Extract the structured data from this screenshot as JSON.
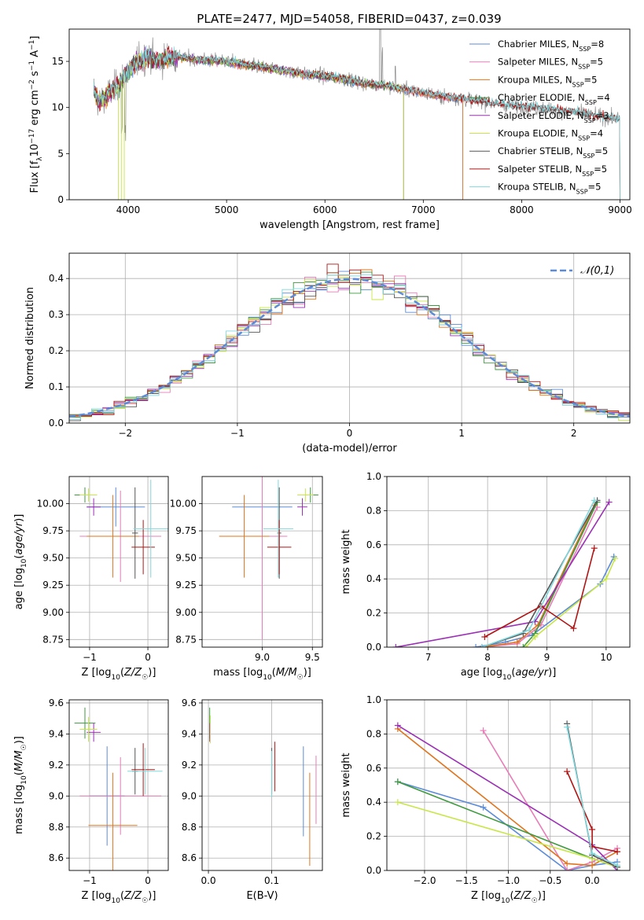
{
  "figure": {
    "title": "PLATE=2477, MJD=54058, FIBERID=0437, z=0.039"
  },
  "palette": {
    "Chabrier MILES": "#5b8bd9",
    "Salpeter MILES": "#e87cb8",
    "Kroupa MILES": "#e0751f",
    "Chabrier ELODIE": "#3f9a3f",
    "Salpeter ELODIE": "#9b2fb5",
    "Kroupa ELODIE": "#c8e64a",
    "Chabrier STELIB": "#555555",
    "Salpeter STELIB": "#b01515",
    "Kroupa STELIB": "#7fd8dc"
  },
  "chart_data": [
    {
      "id": "spectrum",
      "type": "line",
      "title": "PLATE=2477, MJD=54058, FIBERID=0437, z=0.039",
      "xlabel": "wavelength [Angstrom, rest frame]",
      "ylabel": "Flux [f_λ 10^-17 erg cm^-2 s^-1 A^-1]",
      "xlim": [
        3400,
        9100
      ],
      "ylim": [
        0,
        18.5
      ],
      "xticks": [
        4000,
        5000,
        6000,
        7000,
        8000,
        9000
      ],
      "yticks": [
        0,
        5,
        10,
        15
      ],
      "grid": false,
      "legend_position": "top-right",
      "legend": [
        {
          "name": "Chabrier MILES",
          "nssp": "8"
        },
        {
          "name": "Salpeter MILES",
          "nssp": "5"
        },
        {
          "name": "Kroupa MILES",
          "nssp": "5"
        },
        {
          "name": "Chabrier ELODIE",
          "nssp": "4"
        },
        {
          "name": "Salpeter ELODIE",
          "nssp": "3"
        },
        {
          "name": "Kroupa ELODIE",
          "nssp": "4"
        },
        {
          "name": "Chabrier STELIB",
          "nssp": "5"
        },
        {
          "name": "Salpeter STELIB",
          "nssp": "5"
        },
        {
          "name": "Kroupa STELIB",
          "nssp": "5"
        }
      ],
      "continuum": [
        [
          3650,
          12.0
        ],
        [
          3700,
          10.5
        ],
        [
          3800,
          11.5
        ],
        [
          3900,
          12.5
        ],
        [
          4000,
          14.0
        ],
        [
          4100,
          15.0
        ],
        [
          4200,
          15.5
        ],
        [
          4300,
          15.0
        ],
        [
          4400,
          15.3
        ],
        [
          4500,
          15.5
        ],
        [
          4700,
          15.2
        ],
        [
          5000,
          15.0
        ],
        [
          5200,
          14.6
        ],
        [
          5400,
          14.3
        ],
        [
          5600,
          14.0
        ],
        [
          5800,
          13.6
        ],
        [
          6000,
          13.4
        ],
        [
          6200,
          13.1
        ],
        [
          6400,
          12.6
        ],
        [
          6600,
          12.4
        ],
        [
          6800,
          12.0
        ],
        [
          7000,
          11.6
        ],
        [
          7200,
          11.2
        ],
        [
          7500,
          10.8
        ],
        [
          7800,
          10.3
        ],
        [
          8000,
          10.1
        ],
        [
          8200,
          9.9
        ],
        [
          8500,
          9.5
        ],
        [
          8800,
          9.0
        ],
        [
          9000,
          8.7
        ]
      ],
      "model_edges": {
        "MILES_max": 7400,
        "STELIB_max": 9000,
        "ELODIE_max": 6800,
        "min": 3650
      }
    },
    {
      "id": "residuals",
      "type": "line",
      "xlabel": "(data-model)/error",
      "ylabel": "Normed distribution",
      "xlim": [
        -2.5,
        2.5
      ],
      "ylim": [
        0,
        0.47
      ],
      "xticks": [
        -2,
        -1,
        0,
        1,
        2
      ],
      "yticks": [
        0.0,
        0.1,
        0.2,
        0.3,
        0.4
      ],
      "grid": true,
      "legend_position": "top-right",
      "reference_label": "𝒩(0,1)",
      "reference_color": "#5b8bd9",
      "bin_width": 0.1
    },
    {
      "id": "age_vs_Z",
      "type": "scatter",
      "xlabel": "Z [log10(Z/Z☉)]",
      "ylabel": "age [log10(age/yr)]",
      "xlim": [
        -1.35,
        0.35
      ],
      "ylim": [
        8.68,
        10.25
      ],
      "xticks": [
        -1,
        0
      ],
      "yticks": [
        8.75,
        9.0,
        9.25,
        9.5,
        9.75,
        10.0
      ],
      "grid": true,
      "points": [
        {
          "s": "Chabrier MILES",
          "x": -0.55,
          "y": 9.97,
          "xerr": 0.5,
          "yerr": 0.18
        },
        {
          "s": "Salpeter MILES",
          "x": -0.47,
          "y": 9.7,
          "xerr": 0.7,
          "yerr": 0.42
        },
        {
          "s": "Kroupa MILES",
          "x": -0.6,
          "y": 9.7,
          "xerr": 0.45,
          "yerr": 0.38
        },
        {
          "s": "Chabrier ELODIE",
          "x": -1.08,
          "y": 10.08,
          "xerr": 0.18,
          "yerr": 0.07
        },
        {
          "s": "Salpeter ELODIE",
          "x": -0.93,
          "y": 9.97,
          "xerr": 0.12,
          "yerr": 0.08
        },
        {
          "s": "Kroupa ELODIE",
          "x": -1.02,
          "y": 10.08,
          "xerr": 0.15,
          "yerr": 0.06
        },
        {
          "s": "Chabrier STELIB",
          "x": -0.22,
          "y": 9.73,
          "xerr": 0.05,
          "yerr": 0.42
        },
        {
          "s": "Salpeter STELIB",
          "x": -0.08,
          "y": 9.6,
          "xerr": 0.2,
          "yerr": 0.25
        },
        {
          "s": "Kroupa STELIB",
          "x": 0.05,
          "y": 9.77,
          "xerr": 0.3,
          "yerr": 0.45
        }
      ]
    },
    {
      "id": "age_vs_mass",
      "type": "scatter",
      "xlabel": "mass [log10(M/M☉)]",
      "ylabel": "",
      "xlim": [
        8.4,
        9.6
      ],
      "ylim": [
        8.68,
        10.25
      ],
      "xticks": [
        9.0,
        9.5
      ],
      "yticks": [
        8.75,
        9.0,
        9.25,
        9.5,
        9.75,
        10.0
      ],
      "grid": true,
      "points": [
        {
          "s": "Chabrier MILES",
          "x": 9.0,
          "y": 9.97,
          "xerr": 0.3,
          "yerr": 0.18
        },
        {
          "s": "Salpeter MILES",
          "x": 9.0,
          "y": 9.7,
          "xerr": 0.25,
          "yerr": 0.95
        },
        {
          "s": "Kroupa MILES",
          "x": 8.82,
          "y": 9.7,
          "xerr": 0.25,
          "yerr": 0.38
        },
        {
          "s": "Chabrier ELODIE",
          "x": 9.48,
          "y": 10.08,
          "xerr": 0.08,
          "yerr": 0.07
        },
        {
          "s": "Salpeter ELODIE",
          "x": 9.4,
          "y": 9.97,
          "xerr": 0.05,
          "yerr": 0.08
        },
        {
          "s": "Kroupa ELODIE",
          "x": 9.43,
          "y": 10.08,
          "xerr": 0.08,
          "yerr": 0.06
        },
        {
          "s": "Chabrier STELIB",
          "x": 9.17,
          "y": 9.73,
          "xerr": 0.02,
          "yerr": 0.42
        },
        {
          "s": "Salpeter STELIB",
          "x": 9.17,
          "y": 9.6,
          "xerr": 0.12,
          "yerr": 0.25
        },
        {
          "s": "Kroupa STELIB",
          "x": 9.16,
          "y": 9.77,
          "xerr": 0.15,
          "yerr": 0.45
        }
      ]
    },
    {
      "id": "weight_vs_age",
      "type": "line",
      "xlabel": "age [log10(age/yr)]",
      "ylabel": "mass weight",
      "xlim": [
        6.3,
        10.4
      ],
      "ylim": [
        0,
        1.0
      ],
      "xticks": [
        7,
        8,
        9,
        10
      ],
      "yticks": [
        0.0,
        0.2,
        0.4,
        0.6,
        0.8,
        1.0
      ],
      "grid": true,
      "series": [
        {
          "name": "Chabrier MILES",
          "x": [
            7.8,
            8.3,
            8.75,
            9.9,
            10.13
          ],
          "y": [
            0.0,
            0.03,
            0.07,
            0.37,
            0.53
          ]
        },
        {
          "name": "Salpeter MILES",
          "x": [
            7.9,
            8.5,
            8.9,
            9.85
          ],
          "y": [
            0.0,
            0.02,
            0.13,
            0.82
          ]
        },
        {
          "name": "Kroupa MILES",
          "x": [
            7.9,
            8.5,
            8.85,
            9.8
          ],
          "y": [
            0.0,
            0.03,
            0.13,
            0.83
          ]
        },
        {
          "name": "Chabrier ELODIE",
          "x": [
            8.6,
            8.8,
            9.85
          ],
          "y": [
            0.0,
            0.08,
            0.85
          ]
        },
        {
          "name": "Salpeter ELODIE",
          "x": [
            6.45,
            8.8,
            10.05
          ],
          "y": [
            0.0,
            0.15,
            0.85
          ]
        },
        {
          "name": "Kroupa ELODIE",
          "x": [
            8.65,
            8.8,
            10.0,
            10.15
          ],
          "y": [
            0.0,
            0.06,
            0.4,
            0.52
          ]
        },
        {
          "name": "Chabrier STELIB",
          "x": [
            7.9,
            8.6,
            9.85
          ],
          "y": [
            0.0,
            0.08,
            0.86
          ]
        },
        {
          "name": "Salpeter STELIB",
          "x": [
            7.95,
            8.9,
            9.45,
            9.8
          ],
          "y": [
            0.06,
            0.24,
            0.11,
            0.58
          ]
        },
        {
          "name": "Kroupa STELIB",
          "x": [
            7.9,
            8.7,
            9.8
          ],
          "y": [
            0.0,
            0.1,
            0.86
          ]
        }
      ]
    },
    {
      "id": "mass_vs_Z",
      "type": "scatter",
      "xlabel": "Z [log10(Z/Z☉)]",
      "ylabel": "mass [log10(M/M☉)]",
      "xlim": [
        -1.35,
        0.35
      ],
      "ylim": [
        8.52,
        9.62
      ],
      "xticks": [
        -1,
        0
      ],
      "yticks": [
        8.6,
        8.8,
        9.0,
        9.2,
        9.4,
        9.6
      ],
      "grid": true,
      "points": [
        {
          "s": "Chabrier MILES",
          "x": -0.7,
          "y": 9.0,
          "xerr": 0.3,
          "yerr": 0.32
        },
        {
          "s": "Salpeter MILES",
          "x": -0.47,
          "y": 9.0,
          "xerr": 0.7,
          "yerr": 0.25
        },
        {
          "s": "Kroupa MILES",
          "x": -0.6,
          "y": 8.81,
          "xerr": 0.42,
          "yerr": 0.34
        },
        {
          "s": "Chabrier ELODIE",
          "x": -1.08,
          "y": 9.47,
          "xerr": 0.18,
          "yerr": 0.1
        },
        {
          "s": "Salpeter ELODIE",
          "x": -0.93,
          "y": 9.41,
          "xerr": 0.12,
          "yerr": 0.06
        },
        {
          "s": "Kroupa ELODIE",
          "x": -1.02,
          "y": 9.43,
          "xerr": 0.15,
          "yerr": 0.08
        },
        {
          "s": "Chabrier STELIB",
          "x": -0.22,
          "y": 9.16,
          "xerr": 0.05,
          "yerr": 0.15
        },
        {
          "s": "Salpeter STELIB",
          "x": -0.08,
          "y": 9.17,
          "xerr": 0.2,
          "yerr": 0.17
        },
        {
          "s": "Kroupa STELIB",
          "x": -0.05,
          "y": 9.16,
          "xerr": 0.3,
          "yerr": 0.15
        }
      ]
    },
    {
      "id": "mass_vs_ebv",
      "type": "scatter",
      "xlabel": "E(B-V)",
      "ylabel": "",
      "xlim": [
        -0.01,
        0.18
      ],
      "ylim": [
        8.52,
        9.62
      ],
      "xticks": [
        0.0,
        0.1
      ],
      "yticks": [
        8.6,
        8.8,
        9.0,
        9.2,
        9.4,
        9.6
      ],
      "grid": true,
      "points": [
        {
          "s": "Chabrier MILES",
          "x": 0.15,
          "y": 9.03,
          "xerr": 0.0,
          "yerr": 0.29
        },
        {
          "s": "Salpeter MILES",
          "x": 0.17,
          "y": 9.04,
          "xerr": 0.0,
          "yerr": 0.22
        },
        {
          "s": "Kroupa MILES",
          "x": 0.16,
          "y": 8.85,
          "xerr": 0.0,
          "yerr": 0.3
        },
        {
          "s": "Chabrier ELODIE",
          "x": 0.002,
          "y": 9.47,
          "xerr": 0.0,
          "yerr": 0.1
        },
        {
          "s": "Salpeter ELODIE",
          "x": 0.002,
          "y": 9.41,
          "xerr": 0.0,
          "yerr": 0.06
        },
        {
          "s": "Kroupa ELODIE",
          "x": 0.003,
          "y": 9.43,
          "xerr": 0.0,
          "yerr": 0.09
        },
        {
          "s": "Chabrier STELIB",
          "x": 0.1,
          "y": 9.16,
          "xerr": 0.0,
          "yerr": 0.15
        },
        {
          "s": "Salpeter STELIB",
          "x": 0.105,
          "y": 9.19,
          "xerr": 0.0,
          "yerr": 0.16
        },
        {
          "s": "Kroupa STELIB",
          "x": 0.1,
          "y": 9.14,
          "xerr": 0.0,
          "yerr": 0.15
        }
      ]
    },
    {
      "id": "weight_vs_Z",
      "type": "line",
      "xlabel": "Z [log10(Z/Z☉)]",
      "ylabel": "mass weight",
      "xlim": [
        -2.45,
        0.45
      ],
      "ylim": [
        0,
        1.0
      ],
      "xticks": [
        -2.0,
        -1.5,
        -1.0,
        -0.5,
        0.0
      ],
      "yticks": [
        0.0,
        0.2,
        0.4,
        0.6,
        0.8,
        1.0
      ],
      "grid": true,
      "series": [
        {
          "name": "Chabrier MILES",
          "x": [
            -2.32,
            -1.3,
            -0.3,
            0.0,
            0.3
          ],
          "y": [
            0.52,
            0.37,
            0.0,
            0.03,
            0.05
          ]
        },
        {
          "name": "Salpeter MILES",
          "x": [
            -1.3,
            -0.3,
            0.0,
            0.3
          ],
          "y": [
            0.82,
            0.0,
            0.05,
            0.13
          ]
        },
        {
          "name": "Kroupa MILES",
          "x": [
            -2.32,
            -0.3,
            0.0,
            0.3
          ],
          "y": [
            0.83,
            0.04,
            0.03,
            0.11
          ]
        },
        {
          "name": "Chabrier ELODIE",
          "x": [
            -2.32,
            0.0,
            0.3
          ],
          "y": [
            0.52,
            0.07,
            0.02
          ]
        },
        {
          "name": "Salpeter ELODIE",
          "x": [
            -2.32,
            0.0,
            0.3
          ],
          "y": [
            0.85,
            0.15,
            0.0
          ]
        },
        {
          "name": "Kroupa ELODIE",
          "x": [
            -2.32,
            0.0,
            0.3
          ],
          "y": [
            0.4,
            0.07,
            0.02
          ]
        },
        {
          "name": "Chabrier STELIB",
          "x": [
            -0.3,
            0.0,
            0.3
          ],
          "y": [
            0.86,
            0.09,
            0.02
          ]
        },
        {
          "name": "Salpeter STELIB",
          "x": [
            -0.3,
            0.0,
            0.0,
            0.3
          ],
          "y": [
            0.58,
            0.24,
            0.14,
            0.11
          ]
        },
        {
          "name": "Kroupa STELIB",
          "x": [
            -0.3,
            0.0,
            0.3
          ],
          "y": [
            0.84,
            0.1,
            0.03
          ]
        }
      ]
    }
  ]
}
